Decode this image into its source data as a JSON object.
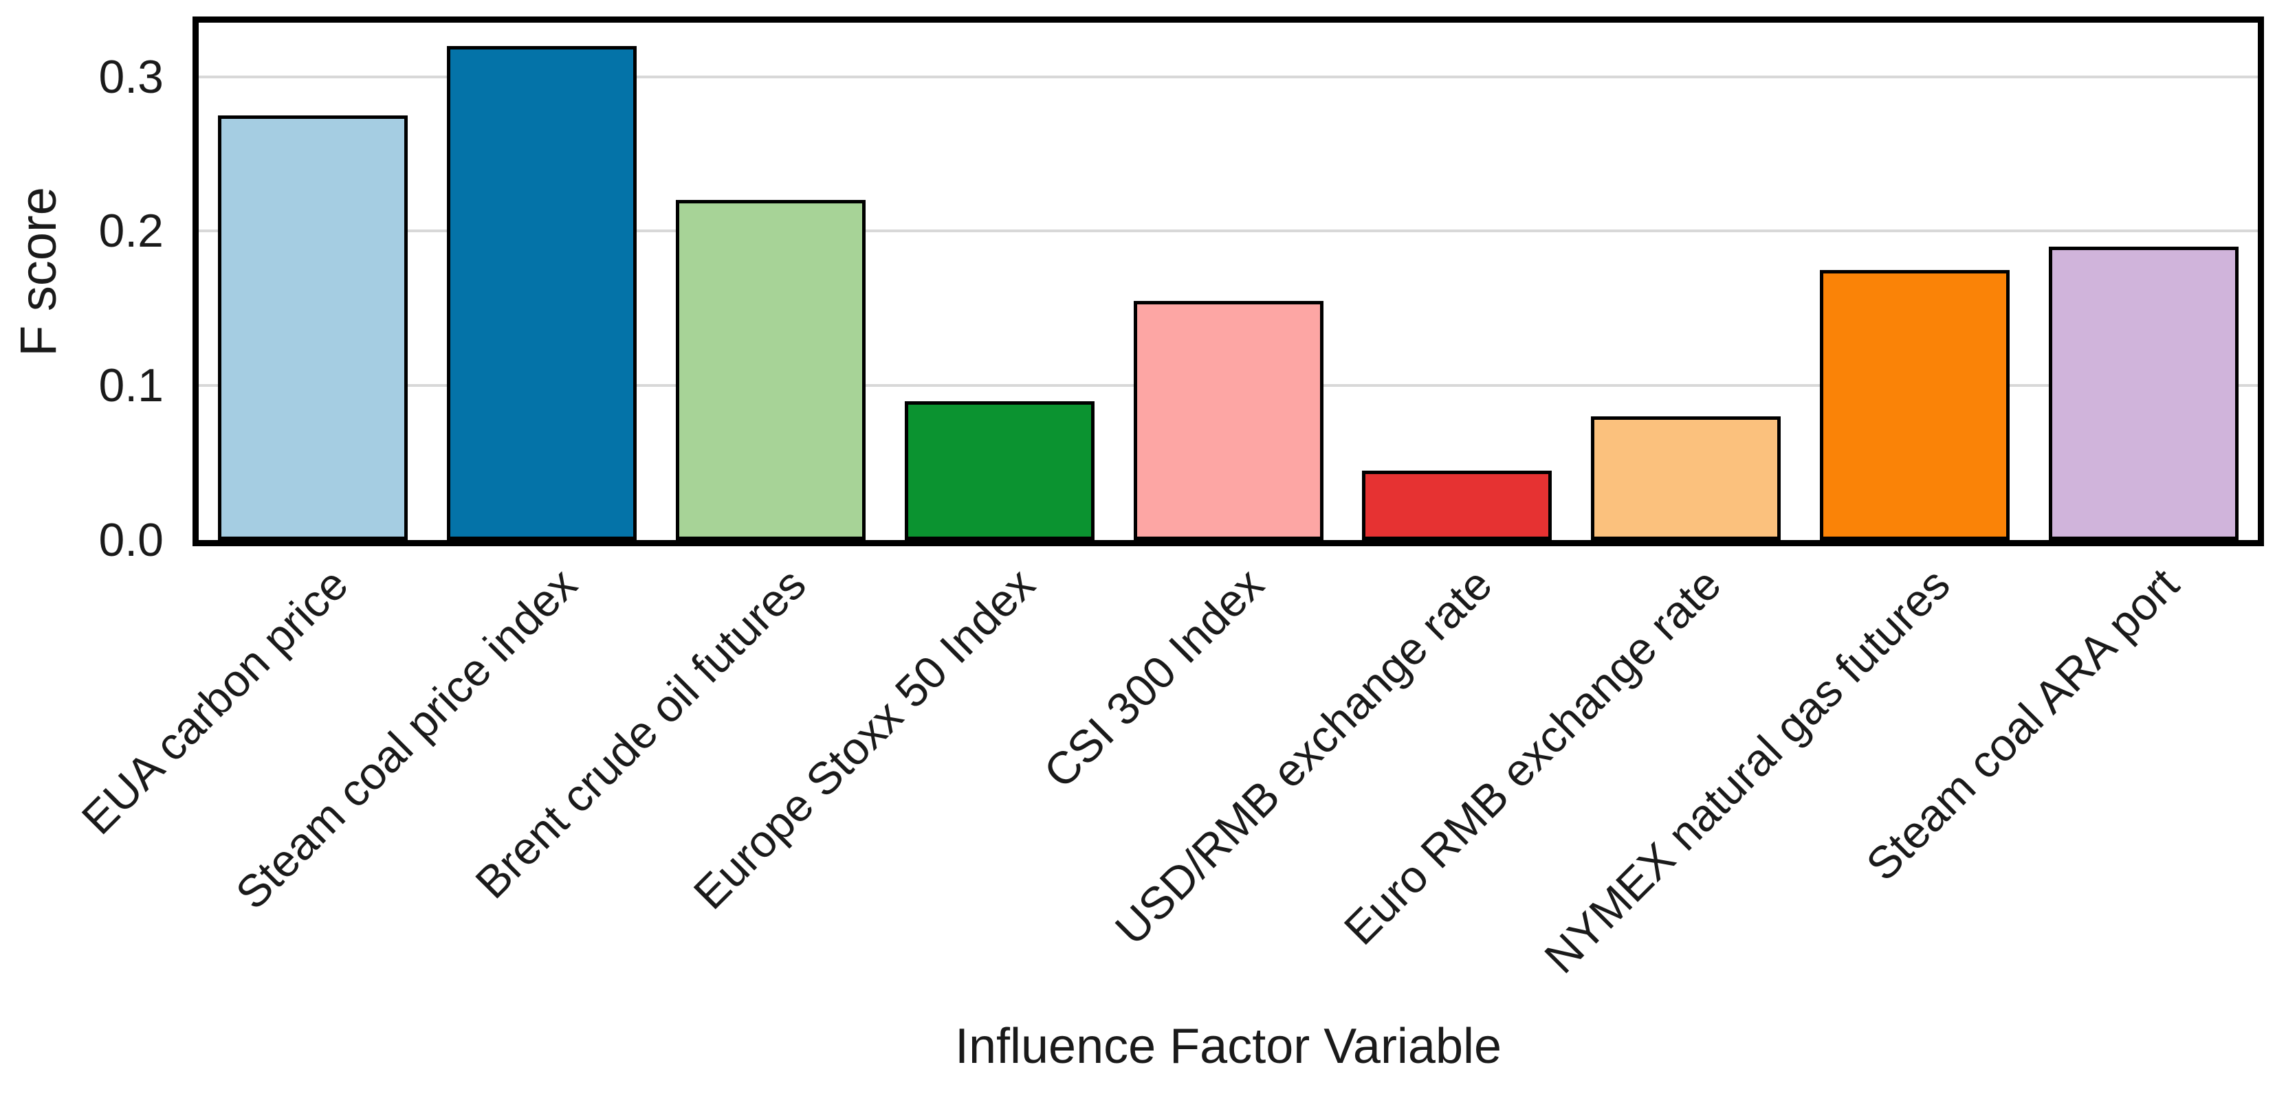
{
  "figure": {
    "background": "#ffffff"
  },
  "chart_data": {
    "type": "bar",
    "title": "",
    "xlabel": "Influence Factor Variable",
    "ylabel": "F score",
    "categories": [
      "EUA carbon price",
      "Steam coal price index",
      "Brent crude oil futures",
      "Europe Stoxx 50 Index",
      "CSI 300 Index",
      "USD/RMB exchange rate",
      "Euro RMB exchange rate",
      "NYMEX natural gas futures",
      "Steam coal ARA port"
    ],
    "values": [
      0.275,
      0.32,
      0.22,
      0.09,
      0.155,
      0.045,
      0.08,
      0.175,
      0.19
    ],
    "bar_colors": [
      "#A5CDE2",
      "#0473A8",
      "#A7D397",
      "#0B9330",
      "#FDA6A4",
      "#E63232",
      "#FBC17D",
      "#FA8307",
      "#D0B4DB"
    ],
    "bar_edge_color": "#000000",
    "ylim": [
      0,
      0.335
    ],
    "yticks": [
      0,
      0.1,
      0.2,
      0.3
    ],
    "ytick_labels": [
      "0.0",
      "0.1",
      "0.2",
      "0.3"
    ],
    "grid": true,
    "gridline_color": "#D8D8D8",
    "axis_frame_color": "#000000",
    "legend_position": "none",
    "x_tick_rotation_deg": 45
  }
}
